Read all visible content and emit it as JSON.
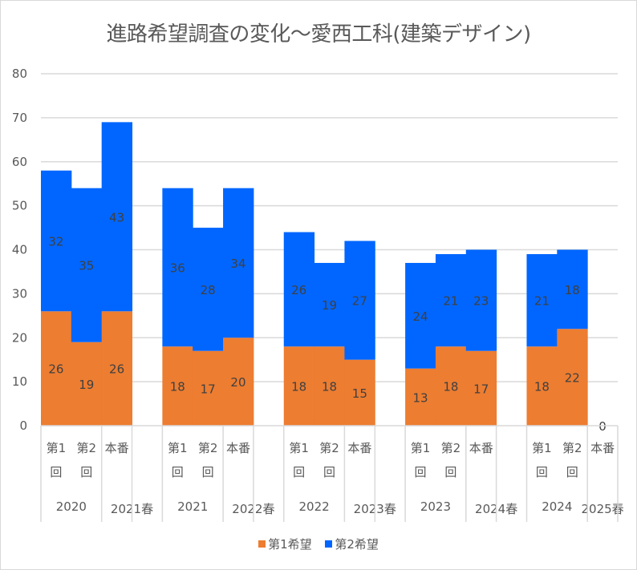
{
  "chart_data": {
    "type": "bar",
    "stacked": true,
    "title": "進路希望調査の変化～愛西工科(建築デザイン)",
    "xlabel": "",
    "ylabel": "",
    "ylim": [
      0,
      80
    ],
    "yticks": [
      0,
      10,
      20,
      30,
      40,
      50,
      60,
      70,
      80
    ],
    "grid": true,
    "legend_position": "bottom",
    "groups": [
      {
        "year_label": "2020",
        "spring_label": "2021春",
        "trailing_blank": true
      },
      {
        "year_label": "2021",
        "spring_label": "2022春",
        "trailing_blank": true
      },
      {
        "year_label": "2022",
        "spring_label": "2023春",
        "trailing_blank": true
      },
      {
        "year_label": "2023",
        "spring_label": "2024春",
        "trailing_blank": true
      },
      {
        "year_label": "2024",
        "spring_label": "2025春",
        "trailing_blank": false
      }
    ],
    "subcategories": [
      {
        "line1": "第1",
        "line2": "回"
      },
      {
        "line1": "第2",
        "line2": "回"
      },
      {
        "line1": "本番",
        "line2": ""
      }
    ],
    "categories": [
      "2020 第1回",
      "2020 第2回",
      "2021春 本番",
      "2021 第1回",
      "2021 第2回",
      "2022春 本番",
      "2022 第1回",
      "2022 第2回",
      "2023春 本番",
      "2023 第1回",
      "2023 第2回",
      "2024春 本番",
      "2024 第1回",
      "2024 第2回",
      "2025春 本番"
    ],
    "series": [
      {
        "name": "第1希望",
        "color": "#ED7D31",
        "values": [
          26,
          19,
          26,
          18,
          17,
          20,
          18,
          18,
          15,
          13,
          18,
          17,
          18,
          22,
          0
        ],
        "labels": [
          "26",
          "19",
          "26",
          "18",
          "17",
          "20",
          "18",
          "18",
          "15",
          "13",
          "18",
          "17",
          "18",
          "22",
          "0"
        ]
      },
      {
        "name": "第2希望",
        "color": "#0066FF",
        "values": [
          32,
          35,
          43,
          36,
          28,
          34,
          26,
          19,
          27,
          24,
          21,
          23,
          21,
          18,
          null
        ],
        "labels": [
          "32",
          "35",
          "43",
          "36",
          "28",
          "34",
          "26",
          "19",
          "27",
          "24",
          "21",
          "23",
          "21",
          "18",
          ""
        ]
      }
    ]
  }
}
